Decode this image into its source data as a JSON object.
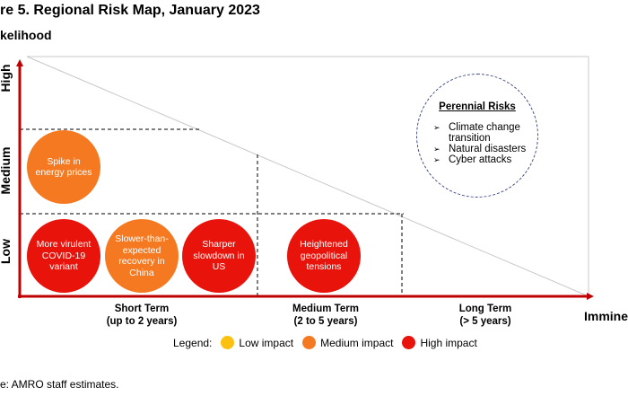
{
  "chart_data": {
    "type": "scatter",
    "title": "re 5. Regional Risk Map, January 2023",
    "ylabel": "kelihood",
    "xlabel": "Immine",
    "y_levels": [
      "Low",
      "Medium",
      "High"
    ],
    "x_periods": [
      {
        "line1": "Short Term",
        "line2": "(up to 2 years)"
      },
      {
        "line1": "Medium Term",
        "line2": "(2 to 5 years)"
      },
      {
        "line1": "Long Term",
        "line2": "(> 5 years)"
      }
    ],
    "risks": [
      {
        "label": "Spike in energy prices",
        "likelihood": "Medium",
        "term": "Short Term",
        "impact": "Medium impact"
      },
      {
        "label": "More virulent COVID-19 variant",
        "likelihood": "Low",
        "term": "Short Term",
        "impact": "High impact"
      },
      {
        "label": "Slower-than-expected recovery in China",
        "likelihood": "Low",
        "term": "Short Term",
        "impact": "Medium impact"
      },
      {
        "label": "Sharper slowdown in US",
        "likelihood": "Low",
        "term": "Short Term",
        "impact": "High impact"
      },
      {
        "label": "Heightened geopolitical tensions",
        "likelihood": "Low",
        "term": "Medium Term",
        "impact": "High impact"
      }
    ],
    "perennial": {
      "title": "Perennial Risks",
      "items": [
        "Climate change transition",
        "Natural disasters",
        "Cyber attacks"
      ]
    },
    "legend": {
      "title": "Legend:",
      "items": [
        {
          "label": "Low impact",
          "color": "#fcc010"
        },
        {
          "label": "Medium impact",
          "color": "#f47920"
        },
        {
          "label": "High impact",
          "color": "#e8130b"
        }
      ]
    }
  },
  "colors": {
    "axis": "#c00000",
    "medium": "#f47920",
    "high": "#e8130b",
    "low": "#fcc010"
  },
  "source": "e: AMRO staff estimates."
}
